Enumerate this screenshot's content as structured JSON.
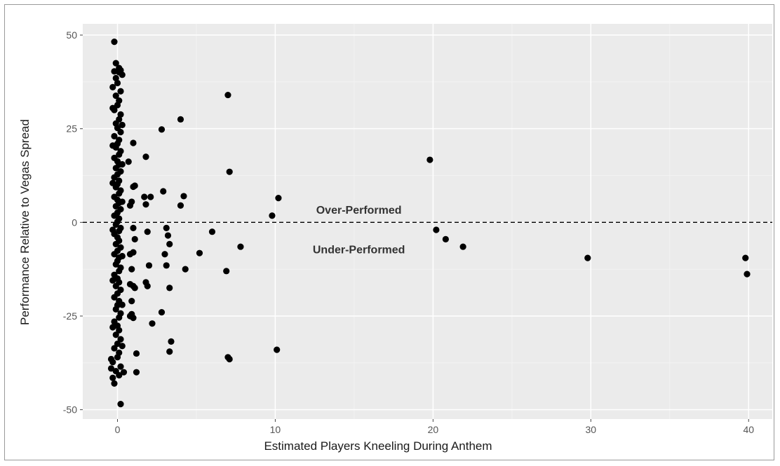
{
  "chart_data": {
    "type": "scatter",
    "xlabel": "Estimated Players Kneeling During Anthem",
    "ylabel": "Performance Relative to Vegas Spread",
    "xlim": [
      -2.2,
      41.5
    ],
    "ylim": [
      -52.5,
      53
    ],
    "x_ticks": [
      0,
      10,
      20,
      30,
      40
    ],
    "y_ticks": [
      -50,
      -25,
      0,
      25,
      50
    ],
    "x_tick_labels": [
      "0",
      "10",
      "20",
      "30",
      "40"
    ],
    "y_tick_labels": [
      "-50",
      "-25",
      "0",
      "25",
      "50"
    ],
    "grid": true,
    "legend": "none",
    "reference_line": {
      "y": 0,
      "style": "dashed"
    },
    "annotations": [
      {
        "text": "Over-Performed",
        "x": 15.3,
        "y": 2.3
      },
      {
        "text": "Under-Performed",
        "x": 15.3,
        "y": -8.3
      }
    ],
    "colors": {
      "panel": "#ebebeb",
      "grid_major": "#ffffff",
      "grid_minor": "#f4f4f4",
      "point": "#000000"
    },
    "points": [
      [
        -0.2,
        48.2
      ],
      [
        -0.1,
        42.5
      ],
      [
        0.1,
        41.2
      ],
      [
        -0.2,
        40.3
      ],
      [
        0.2,
        40.6
      ],
      [
        0.3,
        39.4
      ],
      [
        0.1,
        40.1
      ],
      [
        -0.1,
        38.5
      ],
      [
        0.0,
        37.2
      ],
      [
        -0.3,
        36.1
      ],
      [
        0.2,
        35.0
      ],
      [
        -0.1,
        33.8
      ],
      [
        0.1,
        32.5
      ],
      [
        0.0,
        31.3
      ],
      [
        -0.2,
        30.0
      ],
      [
        0.2,
        28.8
      ],
      [
        0.1,
        27.5
      ],
      [
        -0.1,
        26.4
      ],
      [
        0.0,
        25.2
      ],
      [
        0.2,
        24.1
      ],
      [
        -0.2,
        23.0
      ],
      [
        0.1,
        22.0
      ],
      [
        0.0,
        21.0
      ],
      [
        -0.1,
        20.0
      ],
      [
        0.2,
        19.0
      ],
      [
        0.1,
        18.1
      ],
      [
        -0.2,
        17.2
      ],
      [
        0.0,
        16.3
      ],
      [
        0.1,
        15.4
      ],
      [
        -0.1,
        14.5
      ],
      [
        0.2,
        13.6
      ],
      [
        0.0,
        12.8
      ],
      [
        -0.2,
        12.0
      ],
      [
        0.1,
        11.1
      ],
      [
        0.0,
        10.2
      ],
      [
        -0.1,
        9.4
      ],
      [
        0.2,
        8.5
      ],
      [
        0.1,
        7.7
      ],
      [
        -0.2,
        6.8
      ],
      [
        0.0,
        6.0
      ],
      [
        0.1,
        5.2
      ],
      [
        -0.1,
        4.3
      ],
      [
        0.2,
        3.5
      ],
      [
        0.0,
        2.6
      ],
      [
        -0.2,
        1.8
      ],
      [
        0.1,
        1.0
      ],
      [
        0.0,
        0.2
      ],
      [
        -0.1,
        -0.6
      ],
      [
        0.2,
        -1.5
      ],
      [
        0.1,
        -2.3
      ],
      [
        -0.2,
        -3.1
      ],
      [
        0.0,
        -4.0
      ],
      [
        0.1,
        -4.9
      ],
      [
        -0.1,
        -5.8
      ],
      [
        0.2,
        -6.7
      ],
      [
        0.0,
        -7.6
      ],
      [
        -0.2,
        -8.5
      ],
      [
        0.1,
        -9.4
      ],
      [
        0.0,
        -10.3
      ],
      [
        -0.1,
        -11.2
      ],
      [
        0.2,
        -12.1
      ],
      [
        0.1,
        -13.0
      ],
      [
        -0.2,
        -14.0
      ],
      [
        0.0,
        -15.0
      ],
      [
        0.1,
        -16.0
      ],
      [
        -0.1,
        -17.0
      ],
      [
        0.2,
        -18.0
      ],
      [
        0.0,
        -19.0
      ],
      [
        -0.2,
        -20.0
      ],
      [
        0.1,
        -21.0
      ],
      [
        0.0,
        -22.1
      ],
      [
        -0.1,
        -23.2
      ],
      [
        0.2,
        -24.3
      ],
      [
        0.1,
        -25.4
      ],
      [
        -0.2,
        -26.5
      ],
      [
        0.0,
        -27.6
      ],
      [
        0.1,
        -28.8
      ],
      [
        -0.1,
        -30.0
      ],
      [
        0.2,
        -31.2
      ],
      [
        0.0,
        -32.4
      ],
      [
        -0.2,
        -33.6
      ],
      [
        0.1,
        -34.8
      ],
      [
        0.0,
        -36.0
      ],
      [
        -0.3,
        -37.3
      ],
      [
        0.2,
        -38.5
      ],
      [
        -0.1,
        -39.7
      ],
      [
        0.1,
        -40.8
      ],
      [
        -0.3,
        -41.5
      ],
      [
        -0.2,
        -43.0
      ],
      [
        0.2,
        -48.5
      ],
      [
        -0.3,
        30.5
      ],
      [
        0.3,
        26.0
      ],
      [
        -0.3,
        20.5
      ],
      [
        0.3,
        15.5
      ],
      [
        -0.3,
        10.5
      ],
      [
        0.3,
        5.5
      ],
      [
        -0.3,
        -2.0
      ],
      [
        0.3,
        -9.0
      ],
      [
        -0.3,
        -15.5
      ],
      [
        0.3,
        -22.0
      ],
      [
        -0.3,
        -28.0
      ],
      [
        0.3,
        -33.0
      ],
      [
        -0.4,
        -36.5
      ],
      [
        0.4,
        -40.0
      ],
      [
        -0.4,
        -39.0
      ],
      [
        0.7,
        16.2
      ],
      [
        1.0,
        21.2
      ],
      [
        0.8,
        4.5
      ],
      [
        1.0,
        9.5
      ],
      [
        1.1,
        9.8
      ],
      [
        0.9,
        5.5
      ],
      [
        1.0,
        -1.5
      ],
      [
        1.1,
        -4.5
      ],
      [
        0.8,
        -8.5
      ],
      [
        0.9,
        -12.5
      ],
      [
        1.0,
        -8.0
      ],
      [
        0.8,
        -16.5
      ],
      [
        1.0,
        -17.0
      ],
      [
        1.1,
        -17.5
      ],
      [
        0.9,
        -21.0
      ],
      [
        0.9,
        -24.5
      ],
      [
        1.0,
        -25.5
      ],
      [
        1.2,
        -35.0
      ],
      [
        1.2,
        -40.0
      ],
      [
        0.8,
        -25.0
      ],
      [
        1.8,
        17.5
      ],
      [
        1.7,
        6.8
      ],
      [
        2.1,
        6.8
      ],
      [
        1.8,
        4.8
      ],
      [
        1.9,
        -2.5
      ],
      [
        2.0,
        -11.5
      ],
      [
        1.8,
        -16.0
      ],
      [
        1.9,
        -17.0
      ],
      [
        2.2,
        -27.0
      ],
      [
        2.8,
        24.8
      ],
      [
        2.9,
        8.3
      ],
      [
        3.1,
        -1.5
      ],
      [
        3.2,
        -3.5
      ],
      [
        3.3,
        -5.8
      ],
      [
        3.0,
        -8.5
      ],
      [
        3.1,
        -11.5
      ],
      [
        3.3,
        -17.5
      ],
      [
        2.8,
        -24.0
      ],
      [
        3.4,
        -31.8
      ],
      [
        3.3,
        -34.5
      ],
      [
        4.0,
        27.5
      ],
      [
        4.2,
        7.0
      ],
      [
        4.0,
        4.5
      ],
      [
        4.3,
        -12.5
      ],
      [
        5.2,
        -8.2
      ],
      [
        6.0,
        -2.5
      ],
      [
        7.0,
        34.0
      ],
      [
        7.1,
        13.5
      ],
      [
        6.9,
        -13.0
      ],
      [
        7.8,
        -6.5
      ],
      [
        7.0,
        -36.0
      ],
      [
        7.1,
        -36.5
      ],
      [
        9.8,
        1.8
      ],
      [
        10.2,
        6.5
      ],
      [
        10.1,
        -34.0
      ],
      [
        19.8,
        16.7
      ],
      [
        20.2,
        -2.0
      ],
      [
        20.8,
        -4.5
      ],
      [
        21.9,
        -6.5
      ],
      [
        29.8,
        -9.5
      ],
      [
        39.8,
        -9.5
      ],
      [
        39.9,
        -13.8
      ]
    ]
  }
}
